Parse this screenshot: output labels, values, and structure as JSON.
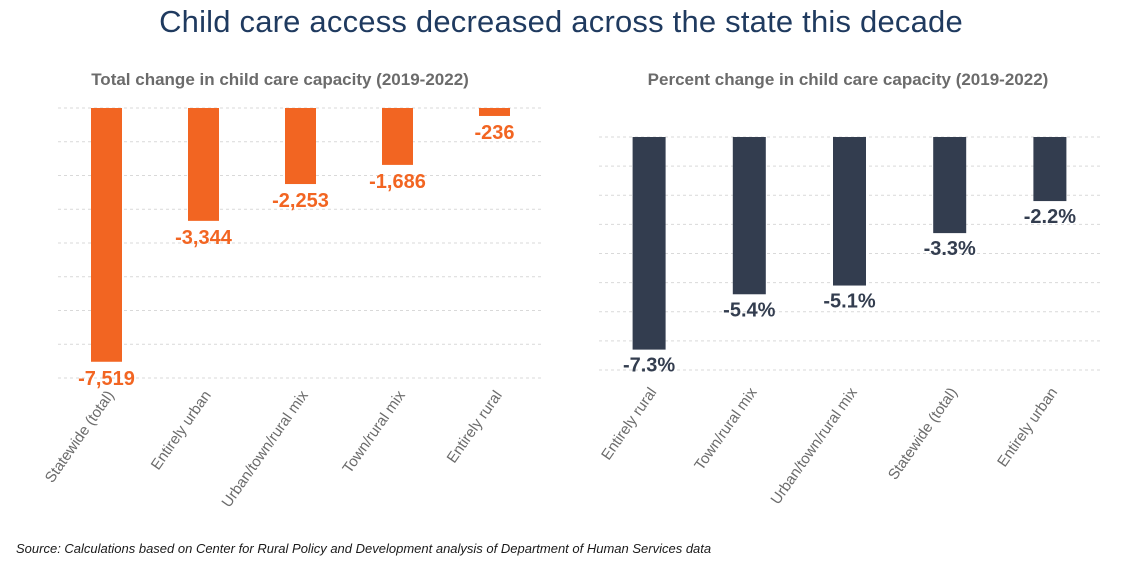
{
  "page": {
    "title": "Child care access decreased across the state this decade",
    "source": "Source: Calculations based on Center for Rural Policy and Development analysis of Department of Human Services data"
  },
  "chart_data": [
    {
      "type": "bar",
      "title": "Total change in child care capacity (2019-2022)",
      "categories": [
        "Statewide (total)",
        "Entirely urban",
        "Urban/town/rural mix",
        "Town/rural mix",
        "Entirely rural"
      ],
      "values": [
        -7519,
        -3344,
        -2253,
        -1686,
        -236
      ],
      "data_labels": [
        "-7,519",
        "-3,344",
        "-2,253",
        "-1,686",
        "-236"
      ],
      "ylim": [
        -8000,
        0
      ],
      "grid": true,
      "color": "#f26522",
      "xlabel": "",
      "ylabel": ""
    },
    {
      "type": "bar",
      "title": "Percent change in child care capacity (2019-2022)",
      "categories": [
        "Entirely rural",
        "Town/rural mix",
        "Urban/town/rural mix",
        "Statewide (total)",
        "Entirely urban"
      ],
      "values": [
        -7.3,
        -5.4,
        -5.1,
        -3.3,
        -2.2
      ],
      "data_labels": [
        "-7.3%",
        "-5.4%",
        "-5.1%",
        "-3.3%",
        "-2.2%"
      ],
      "ylim": [
        -8,
        0
      ],
      "grid": true,
      "color": "#333d4f",
      "xlabel": "",
      "ylabel": ""
    }
  ]
}
